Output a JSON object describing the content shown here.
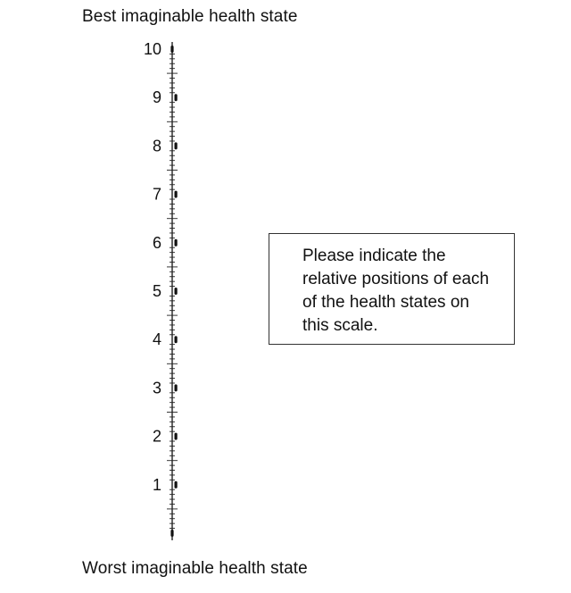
{
  "labels": {
    "best": "Best imaginable health state",
    "worst": "Worst imaginable health state"
  },
  "instruction": "Please indicate the relative positions of each of the health states on this scale.",
  "scale": {
    "min": 0,
    "max": 10,
    "major_labels": [
      "1",
      "2",
      "3",
      "4",
      "5",
      "6",
      "7",
      "8",
      "9",
      "10"
    ],
    "minor_divisions_per_unit": 10
  }
}
